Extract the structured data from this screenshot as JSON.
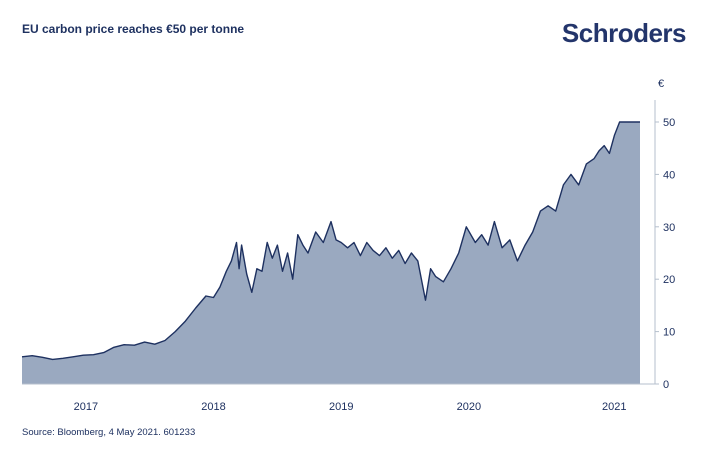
{
  "header": {
    "title": "EU carbon price reaches €50 per tonne",
    "logo": "Schroders"
  },
  "footer": {
    "source": "Source: Bloomberg, 4 May 2021. 601233"
  },
  "chart_data": {
    "type": "area",
    "title": "EU carbon price reaches €50 per tonne",
    "xlabel": "",
    "ylabel": "€",
    "x_tick_labels": [
      "2017",
      "2018",
      "2019",
      "2020",
      "2021"
    ],
    "y_ticks": [
      0,
      10,
      20,
      30,
      40,
      50
    ],
    "ylim": [
      0,
      55
    ],
    "grid": false,
    "legend": "none",
    "colors": {
      "fill": "#9aa9c0",
      "line": "#1e3160",
      "text": "#1e3160",
      "axis": "#b5bfcc"
    },
    "x": [
      2016.5,
      2016.58,
      2016.66,
      2016.74,
      2016.82,
      2016.9,
      2016.98,
      2017.06,
      2017.14,
      2017.22,
      2017.3,
      2017.38,
      2017.46,
      2017.54,
      2017.62,
      2017.7,
      2017.78,
      2017.86,
      2017.94,
      2018.0,
      2018.05,
      2018.1,
      2018.14,
      2018.18,
      2018.2,
      2018.22,
      2018.26,
      2018.3,
      2018.34,
      2018.38,
      2018.42,
      2018.46,
      2018.5,
      2018.54,
      2018.58,
      2018.62,
      2018.66,
      2018.7,
      2018.74,
      2018.8,
      2018.86,
      2018.92,
      2018.96,
      2019.0,
      2019.05,
      2019.1,
      2019.15,
      2019.2,
      2019.25,
      2019.3,
      2019.35,
      2019.4,
      2019.45,
      2019.5,
      2019.55,
      2019.6,
      2019.66,
      2019.7,
      2019.74,
      2019.8,
      2019.86,
      2019.92,
      2019.98,
      2020.05,
      2020.1,
      2020.15,
      2020.2,
      2020.26,
      2020.32,
      2020.38,
      2020.44,
      2020.5,
      2020.56,
      2020.62,
      2020.68,
      2020.74,
      2020.8,
      2020.86,
      2020.92,
      2020.98,
      2021.02,
      2021.06,
      2021.1,
      2021.14,
      2021.18,
      2021.22,
      2021.26,
      2021.3,
      2021.34
    ],
    "values": [
      5.2,
      5.4,
      5.1,
      4.7,
      4.9,
      5.2,
      5.5,
      5.6,
      6.0,
      7.0,
      7.5,
      7.4,
      8.0,
      7.6,
      8.3,
      10.0,
      12.0,
      14.5,
      16.8,
      16.5,
      18.5,
      21.5,
      23.5,
      27.0,
      22.0,
      26.5,
      21.0,
      17.5,
      22.0,
      21.5,
      27.0,
      24.0,
      26.5,
      21.5,
      25.0,
      20.0,
      28.5,
      26.5,
      25.0,
      29.0,
      27.0,
      31.0,
      27.5,
      27.0,
      26.0,
      27.0,
      24.5,
      27.0,
      25.5,
      24.5,
      26.0,
      24.0,
      25.5,
      23.0,
      25.0,
      23.5,
      16.0,
      22.0,
      20.5,
      19.5,
      22.0,
      25.0,
      30.0,
      27.0,
      28.5,
      26.5,
      31.0,
      26.0,
      27.5,
      23.5,
      26.5,
      29.0,
      33.0,
      34.0,
      33.0,
      38.0,
      40.0,
      38.0,
      42.0,
      43.0,
      44.5,
      45.5,
      44.0,
      47.5,
      50.0,
      50.0,
      50.0,
      50.0,
      50.0
    ]
  }
}
